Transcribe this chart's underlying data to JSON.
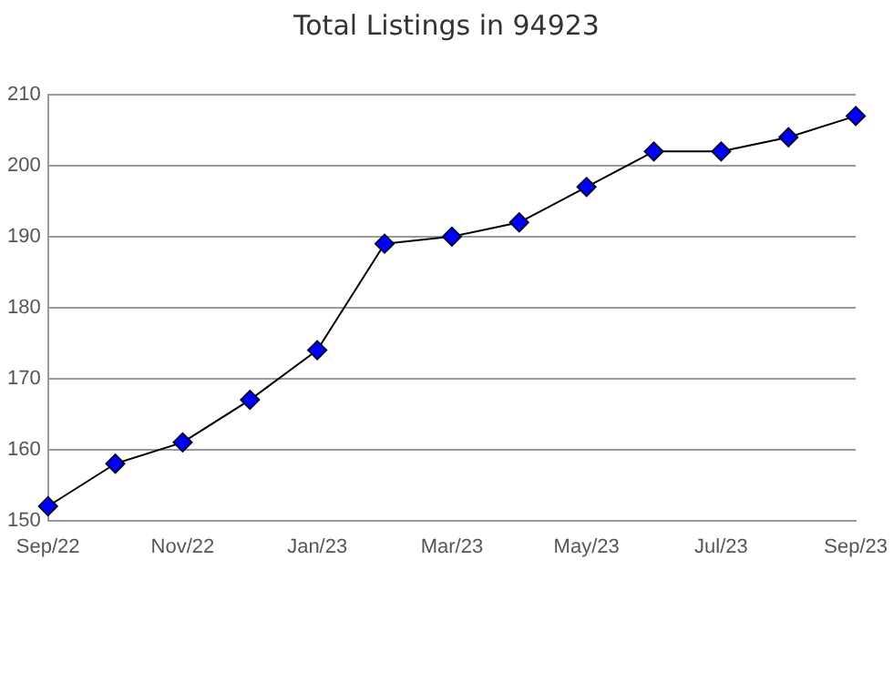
{
  "chart_data": {
    "type": "line",
    "title": "Total Listings in 94923",
    "categories": [
      "Sep/22",
      null,
      "Nov/22",
      null,
      "Jan/23",
      null,
      "Mar/23",
      null,
      "May/23",
      null,
      "Jul/23",
      null,
      "Sep/23"
    ],
    "series": [
      {
        "color": "#0000ff",
        "values": [
          152,
          158,
          161,
          167,
          174,
          189,
          190,
          192,
          197,
          202,
          202,
          204,
          207
        ]
      }
    ],
    "ylim": [
      150,
      210
    ],
    "yticks": [
      150,
      160,
      170,
      180,
      190,
      200,
      210
    ],
    "grid": "y",
    "legend": false,
    "marker": "diamond",
    "line_style": "solid"
  }
}
